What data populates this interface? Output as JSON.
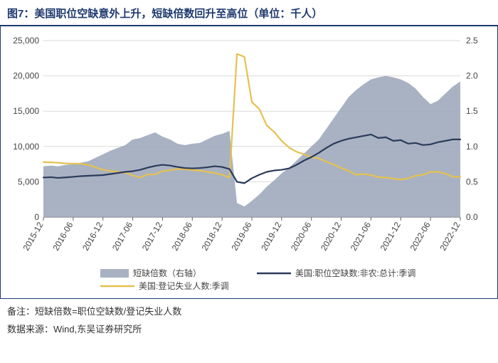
{
  "title": "图7：美国职位空缺意外上升，短缺倍数回升至高位（单位：千人）",
  "footnote_label": "备注：",
  "footnote_text": "短缺倍数=职位空缺数/登记失业人数",
  "source_label": "数据来源：",
  "source_text": "Wind,东吴证券研究所",
  "chart": {
    "type": "line+area-dual-axis",
    "background_color": "#ffffff",
    "border_color": "#1f3a6e",
    "grid_color": "#d9d9d9",
    "axis_color": "#666666",
    "left_axis": {
      "min": 0,
      "max": 25000,
      "step": 5000
    },
    "right_axis": {
      "min": 0.0,
      "max": 2.5,
      "step": 0.5
    },
    "x_labels": [
      "2015-12",
      "2016-06",
      "2016-12",
      "2017-06",
      "2017-12",
      "2018-06",
      "2018-12",
      "2019-06",
      "2019-12",
      "2020-06",
      "2020-12",
      "2021-06",
      "2021-12",
      "2022-06",
      "2022-12"
    ],
    "legend": {
      "area": "短缺倍数（右轴）",
      "line1": "美国:职位空缺数:非农:总计:季调",
      "line2": "美国:登记失业人数:季调"
    },
    "series": {
      "area_ratio_right": {
        "color": "#9aa4b8",
        "opacity": 0.85,
        "values": [
          0.72,
          0.73,
          0.72,
          0.74,
          0.75,
          0.77,
          0.79,
          0.84,
          0.89,
          0.94,
          0.98,
          1.02,
          1.1,
          1.12,
          1.16,
          1.2,
          1.14,
          1.1,
          1.04,
          1.02,
          1.04,
          1.05,
          1.1,
          1.15,
          1.18,
          1.22,
          0.2,
          0.15,
          0.23,
          0.32,
          0.43,
          0.52,
          0.62,
          0.7,
          0.8,
          0.9,
          1.0,
          1.1,
          1.25,
          1.4,
          1.55,
          1.7,
          1.8,
          1.88,
          1.95,
          1.98,
          2.0,
          1.98,
          1.95,
          1.9,
          1.82,
          1.7,
          1.6,
          1.65,
          1.75,
          1.85,
          1.92
        ]
      },
      "line_vacancy_left": {
        "color": "#2b3b5b",
        "width": 2.2,
        "values": [
          5600,
          5650,
          5550,
          5620,
          5700,
          5800,
          5850,
          5900,
          5950,
          6100,
          6250,
          6400,
          6500,
          6700,
          7000,
          7250,
          7400,
          7300,
          7100,
          6950,
          6900,
          6950,
          7050,
          7200,
          7100,
          6800,
          5000,
          4800,
          5500,
          6000,
          6400,
          6600,
          6700,
          6900,
          7400,
          8000,
          8500,
          9100,
          9800,
          10400,
          10800,
          11100,
          11300,
          11500,
          11700,
          11200,
          11300,
          10800,
          10900,
          10400,
          10500,
          10200,
          10300,
          10600,
          10800,
          11000,
          11000
        ]
      },
      "line_unemp_left": {
        "color": "#e6c14f",
        "width": 2.2,
        "values": [
          7800,
          7750,
          7700,
          7600,
          7580,
          7550,
          7400,
          7050,
          6700,
          6520,
          6400,
          6300,
          5900,
          5600,
          6050,
          6050,
          6500,
          6650,
          6800,
          6800,
          6650,
          6600,
          6400,
          6250,
          6000,
          5580,
          23100,
          22700,
          16300,
          15300,
          13000,
          12050,
          10800,
          9850,
          9250,
          8900,
          8500,
          8300,
          7850,
          7450,
          6950,
          6550,
          6000,
          6100,
          5950,
          5650,
          5600,
          5450,
          5320,
          5480,
          5850,
          6000,
          6400,
          6400,
          6150,
          5700,
          5700
        ]
      }
    }
  }
}
